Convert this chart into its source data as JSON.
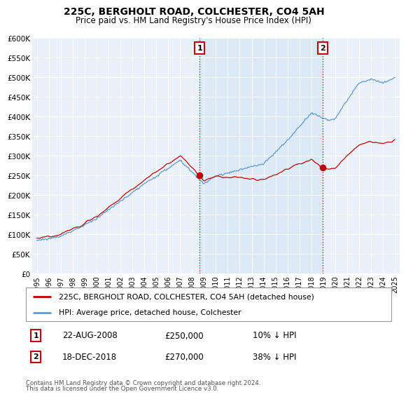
{
  "title": "225C, BERGHOLT ROAD, COLCHESTER, CO4 5AH",
  "subtitle": "Price paid vs. HM Land Registry's House Price Index (HPI)",
  "ylim": [
    0,
    600000
  ],
  "yticks": [
    0,
    50000,
    100000,
    150000,
    200000,
    250000,
    300000,
    350000,
    400000,
    450000,
    500000,
    550000,
    600000
  ],
  "ytick_labels": [
    "£0",
    "£50K",
    "£100K",
    "£150K",
    "£200K",
    "£250K",
    "£300K",
    "£350K",
    "£400K",
    "£450K",
    "£500K",
    "£550K",
    "£600K"
  ],
  "hpi_color": "#5b9bd5",
  "price_color": "#c00000",
  "marker_color": "#c00000",
  "dashed_color": "#c00000",
  "shade_color": "#dce9f7",
  "plot_bg_color": "#eaf1fb",
  "grid_color": "#ffffff",
  "legend_label_price": "225C, BERGHOLT ROAD, COLCHESTER, CO4 5AH (detached house)",
  "legend_label_hpi": "HPI: Average price, detached house, Colchester",
  "sale1_date": "22-AUG-2008",
  "sale1_price": 250000,
  "sale1_pct": "10% ↓ HPI",
  "sale1_year": 2008.64,
  "sale2_date": "18-DEC-2018",
  "sale2_price": 270000,
  "sale2_pct": "38% ↓ HPI",
  "sale2_year": 2018.96,
  "footnote1": "Contains HM Land Registry data © Crown copyright and database right 2024.",
  "footnote2": "This data is licensed under the Open Government Licence v3.0."
}
